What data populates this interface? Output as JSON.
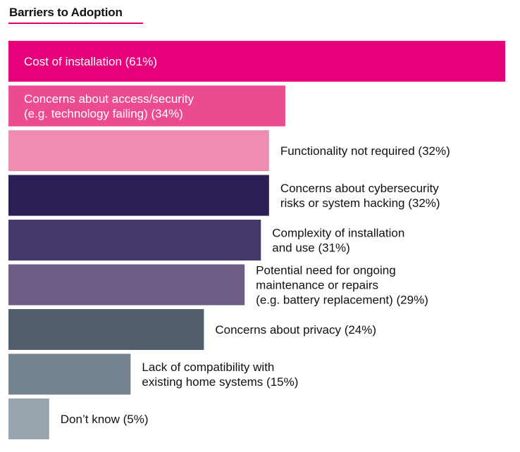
{
  "chart_data": {
    "type": "bar",
    "orientation": "horizontal",
    "title": "Barriers to Adoption",
    "xlabel": "",
    "ylabel": "",
    "xlim": [
      0,
      61
    ],
    "categories": [
      "Cost of installation",
      "Concerns about access/security (e.g. technology failing)",
      "Functionality not required",
      "Concerns about cybersecurity risks or system hacking",
      "Complexity of installation and use",
      "Potential need for ongoing maintenance or repairs (e.g. battery replacement)",
      "Concerns about privacy",
      "Lack of compatibility with existing home systems",
      "Don’t know"
    ],
    "values": [
      61,
      34,
      32,
      32,
      31,
      29,
      24,
      15,
      5
    ],
    "colors": [
      "#e6007a",
      "#ec4b8f",
      "#f08cb1",
      "#2b1f55",
      "#473a6b",
      "#6e5e86",
      "#525f6a",
      "#76848f",
      "#98a5ae"
    ],
    "label_colors": [
      "#ffffff",
      "#ffffff",
      "#111111",
      "#111111",
      "#111111",
      "#111111",
      "#111111",
      "#111111",
      "#111111"
    ],
    "labels": [
      [
        "Cost of installation (61%)"
      ],
      [
        "Concerns about access/security",
        "(e.g. technology failing) (34%)"
      ],
      [
        "Functionality not required (32%)"
      ],
      [
        "Concerns about cybersecurity",
        "risks or system hacking (32%)"
      ],
      [
        "Complexity of installation",
        "and use (31%)"
      ],
      [
        "Potential need for ongoing",
        "maintenance or repairs",
        "(e.g. battery replacement) (29%)"
      ],
      [
        "Concerns about privacy (24%)"
      ],
      [
        "Lack of compatibility with",
        "existing home systems (15%)"
      ],
      [
        "Don’t know (5%)"
      ]
    ],
    "label_inside": [
      true,
      true,
      false,
      false,
      false,
      false,
      false,
      false,
      false
    ]
  }
}
